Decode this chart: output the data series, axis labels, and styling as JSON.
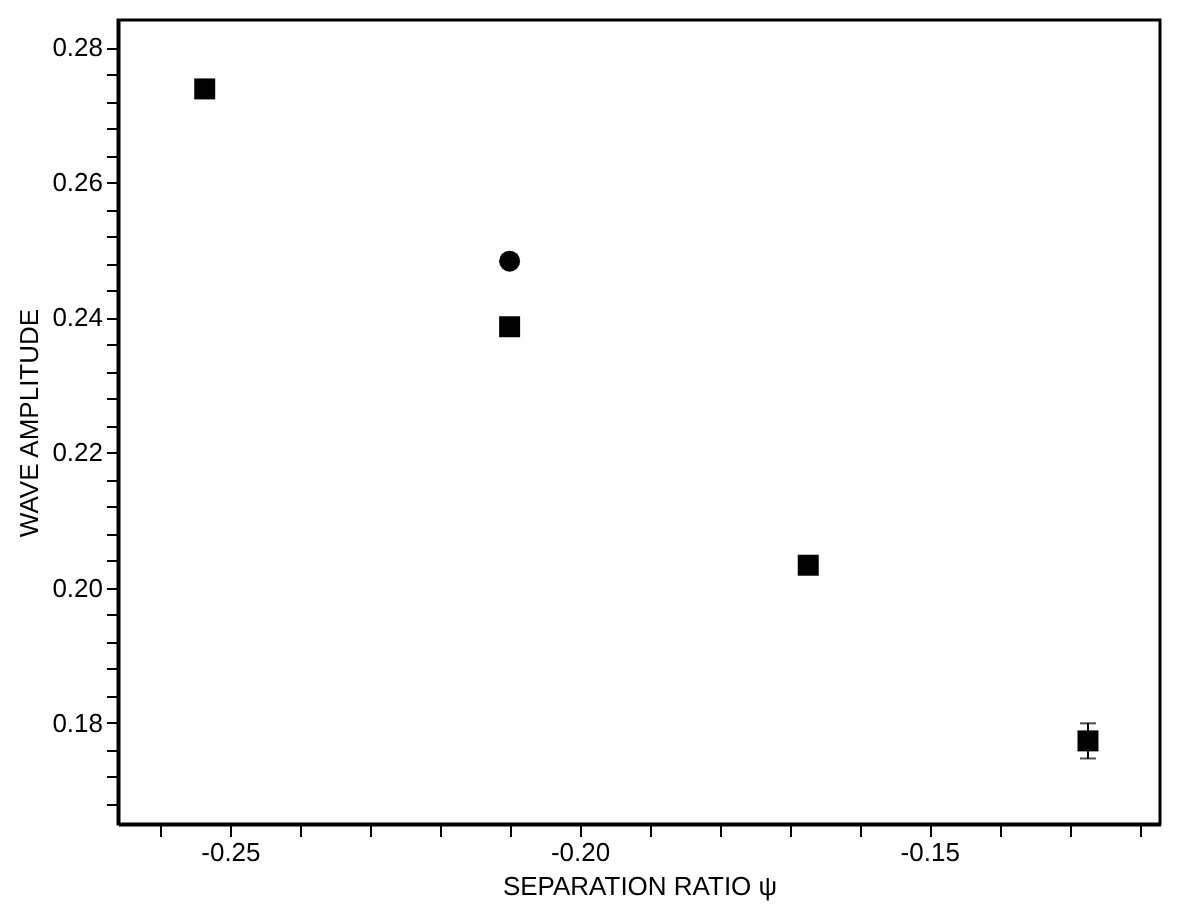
{
  "chart_data": {
    "type": "scatter",
    "xlabel": "SEPARATION RATIO ψ",
    "ylabel": "WAVE AMPLITUDE",
    "xlim": [
      -0.266,
      -0.117
    ],
    "ylim": [
      0.165,
      0.284
    ],
    "xticks": [
      {
        "value": -0.26,
        "label": null
      },
      {
        "value": -0.25,
        "label": "-0.25"
      },
      {
        "value": -0.24,
        "label": null
      },
      {
        "value": -0.23,
        "label": null
      },
      {
        "value": -0.22,
        "label": null
      },
      {
        "value": -0.21,
        "label": null
      },
      {
        "value": -0.2,
        "label": "-0.20"
      },
      {
        "value": -0.19,
        "label": null
      },
      {
        "value": -0.18,
        "label": null
      },
      {
        "value": -0.17,
        "label": null
      },
      {
        "value": -0.16,
        "label": null
      },
      {
        "value": -0.15,
        "label": "-0.15"
      },
      {
        "value": -0.14,
        "label": null
      },
      {
        "value": -0.13,
        "label": null
      },
      {
        "value": -0.12,
        "label": null
      }
    ],
    "yticks": [
      {
        "value": 0.168,
        "label": null
      },
      {
        "value": 0.172,
        "label": null
      },
      {
        "value": 0.176,
        "label": null
      },
      {
        "value": 0.18,
        "label": "0.18"
      },
      {
        "value": 0.184,
        "label": null
      },
      {
        "value": 0.188,
        "label": null
      },
      {
        "value": 0.192,
        "label": null
      },
      {
        "value": 0.196,
        "label": null
      },
      {
        "value": 0.2,
        "label": "0.20"
      },
      {
        "value": 0.204,
        "label": null
      },
      {
        "value": 0.208,
        "label": null
      },
      {
        "value": 0.212,
        "label": null
      },
      {
        "value": 0.216,
        "label": null
      },
      {
        "value": 0.22,
        "label": "0.22"
      },
      {
        "value": 0.224,
        "label": null
      },
      {
        "value": 0.228,
        "label": null
      },
      {
        "value": 0.232,
        "label": null
      },
      {
        "value": 0.236,
        "label": null
      },
      {
        "value": 0.24,
        "label": "0.24"
      },
      {
        "value": 0.244,
        "label": null
      },
      {
        "value": 0.248,
        "label": null
      },
      {
        "value": 0.252,
        "label": null
      },
      {
        "value": 0.256,
        "label": null
      },
      {
        "value": 0.26,
        "label": "0.26"
      },
      {
        "value": 0.264,
        "label": null
      },
      {
        "value": 0.268,
        "label": null
      },
      {
        "value": 0.272,
        "label": null
      },
      {
        "value": 0.276,
        "label": null
      },
      {
        "value": 0.28,
        "label": "0.28"
      }
    ],
    "grid": false,
    "series": [
      {
        "color": "#000000",
        "marker": "square",
        "x": [
          -0.2536,
          -0.21,
          -0.1673,
          -0.1273
        ],
        "values": [
          0.2738,
          0.2386,
          0.2033,
          0.1773
        ],
        "errors": [
          null,
          null,
          null,
          0.0026
        ]
      },
      {
        "color": "#000000",
        "marker": "circle",
        "x": [
          -0.21
        ],
        "values": [
          0.2483
        ]
      }
    ]
  }
}
